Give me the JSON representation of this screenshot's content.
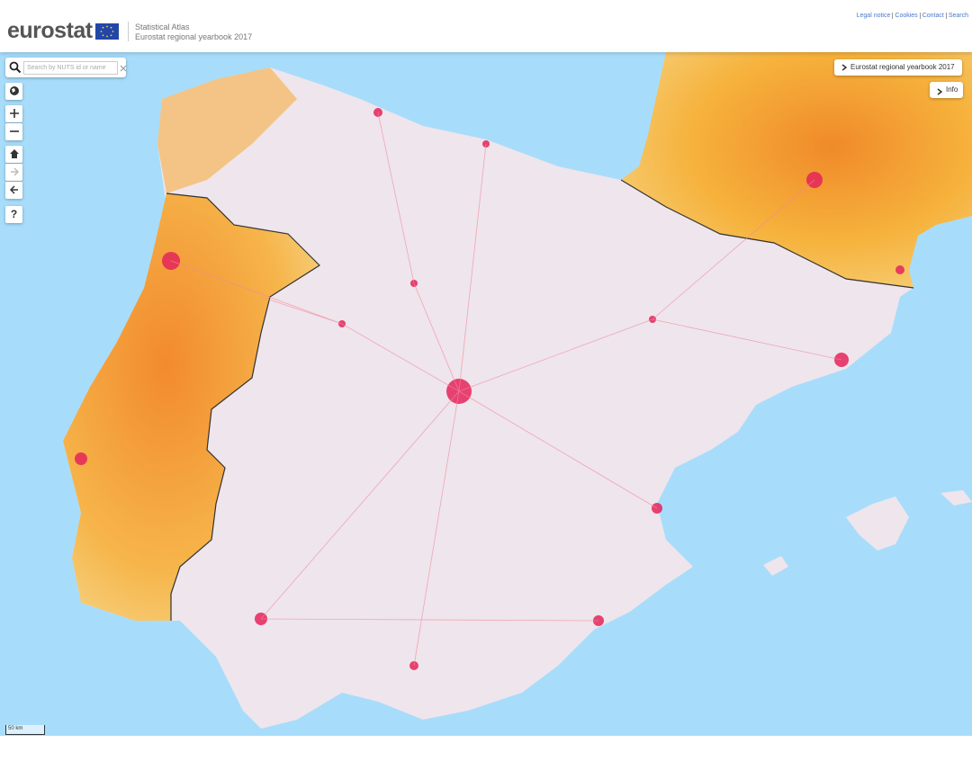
{
  "header": {
    "logo": "eurostat",
    "app_name": "Statistical Atlas",
    "subtitle": "Eurostat regional yearbook 2017",
    "links": [
      "Legal notice",
      "Cookies",
      "Contact",
      "Search"
    ]
  },
  "search": {
    "placeholder": "Search by NUTS id or name"
  },
  "panel": {
    "title": "Eurostat regional yearbook 2017",
    "info": "Info"
  },
  "controls": {
    "help": "?"
  },
  "scale": {
    "label": "50 km"
  }
}
